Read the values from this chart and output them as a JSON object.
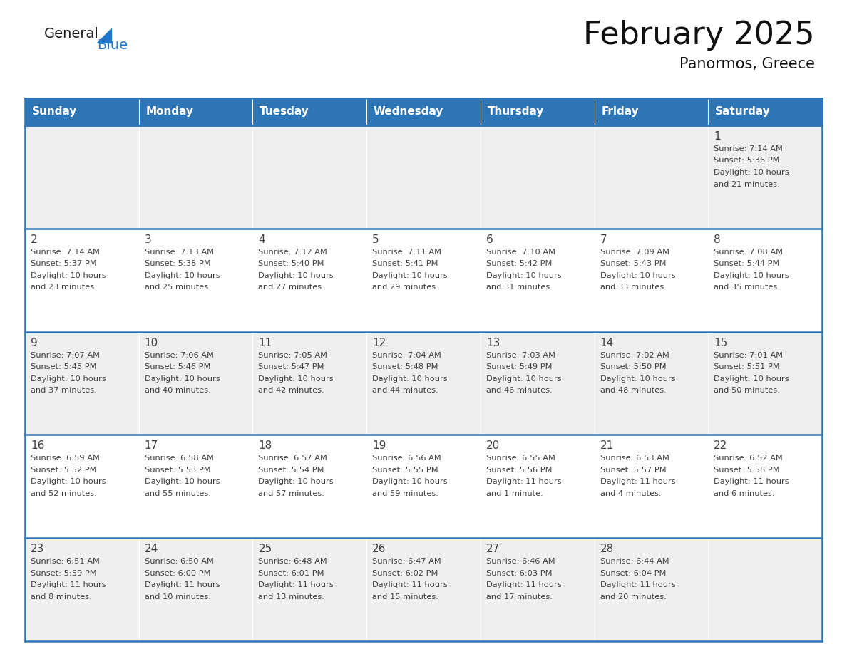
{
  "title": "February 2025",
  "subtitle": "Panormos, Greece",
  "header_color": "#2E75B6",
  "header_text_color": "#FFFFFF",
  "cell_bg_row0": "#EFEFEF",
  "cell_bg_row1": "#FFFFFF",
  "cell_bg_row2": "#EFEFEF",
  "cell_bg_row3": "#FFFFFF",
  "cell_bg_row4": "#EFEFEF",
  "border_color": "#2E75B6",
  "text_color": "#404040",
  "days_of_week": [
    "Sunday",
    "Monday",
    "Tuesday",
    "Wednesday",
    "Thursday",
    "Friday",
    "Saturday"
  ],
  "weeks": [
    [
      {
        "day": "",
        "info": ""
      },
      {
        "day": "",
        "info": ""
      },
      {
        "day": "",
        "info": ""
      },
      {
        "day": "",
        "info": ""
      },
      {
        "day": "",
        "info": ""
      },
      {
        "day": "",
        "info": ""
      },
      {
        "day": "1",
        "info": "Sunrise: 7:14 AM\nSunset: 5:36 PM\nDaylight: 10 hours\nand 21 minutes."
      }
    ],
    [
      {
        "day": "2",
        "info": "Sunrise: 7:14 AM\nSunset: 5:37 PM\nDaylight: 10 hours\nand 23 minutes."
      },
      {
        "day": "3",
        "info": "Sunrise: 7:13 AM\nSunset: 5:38 PM\nDaylight: 10 hours\nand 25 minutes."
      },
      {
        "day": "4",
        "info": "Sunrise: 7:12 AM\nSunset: 5:40 PM\nDaylight: 10 hours\nand 27 minutes."
      },
      {
        "day": "5",
        "info": "Sunrise: 7:11 AM\nSunset: 5:41 PM\nDaylight: 10 hours\nand 29 minutes."
      },
      {
        "day": "6",
        "info": "Sunrise: 7:10 AM\nSunset: 5:42 PM\nDaylight: 10 hours\nand 31 minutes."
      },
      {
        "day": "7",
        "info": "Sunrise: 7:09 AM\nSunset: 5:43 PM\nDaylight: 10 hours\nand 33 minutes."
      },
      {
        "day": "8",
        "info": "Sunrise: 7:08 AM\nSunset: 5:44 PM\nDaylight: 10 hours\nand 35 minutes."
      }
    ],
    [
      {
        "day": "9",
        "info": "Sunrise: 7:07 AM\nSunset: 5:45 PM\nDaylight: 10 hours\nand 37 minutes."
      },
      {
        "day": "10",
        "info": "Sunrise: 7:06 AM\nSunset: 5:46 PM\nDaylight: 10 hours\nand 40 minutes."
      },
      {
        "day": "11",
        "info": "Sunrise: 7:05 AM\nSunset: 5:47 PM\nDaylight: 10 hours\nand 42 minutes."
      },
      {
        "day": "12",
        "info": "Sunrise: 7:04 AM\nSunset: 5:48 PM\nDaylight: 10 hours\nand 44 minutes."
      },
      {
        "day": "13",
        "info": "Sunrise: 7:03 AM\nSunset: 5:49 PM\nDaylight: 10 hours\nand 46 minutes."
      },
      {
        "day": "14",
        "info": "Sunrise: 7:02 AM\nSunset: 5:50 PM\nDaylight: 10 hours\nand 48 minutes."
      },
      {
        "day": "15",
        "info": "Sunrise: 7:01 AM\nSunset: 5:51 PM\nDaylight: 10 hours\nand 50 minutes."
      }
    ],
    [
      {
        "day": "16",
        "info": "Sunrise: 6:59 AM\nSunset: 5:52 PM\nDaylight: 10 hours\nand 52 minutes."
      },
      {
        "day": "17",
        "info": "Sunrise: 6:58 AM\nSunset: 5:53 PM\nDaylight: 10 hours\nand 55 minutes."
      },
      {
        "day": "18",
        "info": "Sunrise: 6:57 AM\nSunset: 5:54 PM\nDaylight: 10 hours\nand 57 minutes."
      },
      {
        "day": "19",
        "info": "Sunrise: 6:56 AM\nSunset: 5:55 PM\nDaylight: 10 hours\nand 59 minutes."
      },
      {
        "day": "20",
        "info": "Sunrise: 6:55 AM\nSunset: 5:56 PM\nDaylight: 11 hours\nand 1 minute."
      },
      {
        "day": "21",
        "info": "Sunrise: 6:53 AM\nSunset: 5:57 PM\nDaylight: 11 hours\nand 4 minutes."
      },
      {
        "day": "22",
        "info": "Sunrise: 6:52 AM\nSunset: 5:58 PM\nDaylight: 11 hours\nand 6 minutes."
      }
    ],
    [
      {
        "day": "23",
        "info": "Sunrise: 6:51 AM\nSunset: 5:59 PM\nDaylight: 11 hours\nand 8 minutes."
      },
      {
        "day": "24",
        "info": "Sunrise: 6:50 AM\nSunset: 6:00 PM\nDaylight: 11 hours\nand 10 minutes."
      },
      {
        "day": "25",
        "info": "Sunrise: 6:48 AM\nSunset: 6:01 PM\nDaylight: 11 hours\nand 13 minutes."
      },
      {
        "day": "26",
        "info": "Sunrise: 6:47 AM\nSunset: 6:02 PM\nDaylight: 11 hours\nand 15 minutes."
      },
      {
        "day": "27",
        "info": "Sunrise: 6:46 AM\nSunset: 6:03 PM\nDaylight: 11 hours\nand 17 minutes."
      },
      {
        "day": "28",
        "info": "Sunrise: 6:44 AM\nSunset: 6:04 PM\nDaylight: 11 hours\nand 20 minutes."
      },
      {
        "day": "",
        "info": ""
      }
    ]
  ],
  "logo_general_color": "#1a1a1a",
  "logo_blue_color": "#2176C8",
  "logo_triangle_color": "#2176C8",
  "row_bg_colors": [
    "#EFEFEF",
    "#FFFFFF",
    "#EFEFEF",
    "#FFFFFF",
    "#EFEFEF"
  ]
}
